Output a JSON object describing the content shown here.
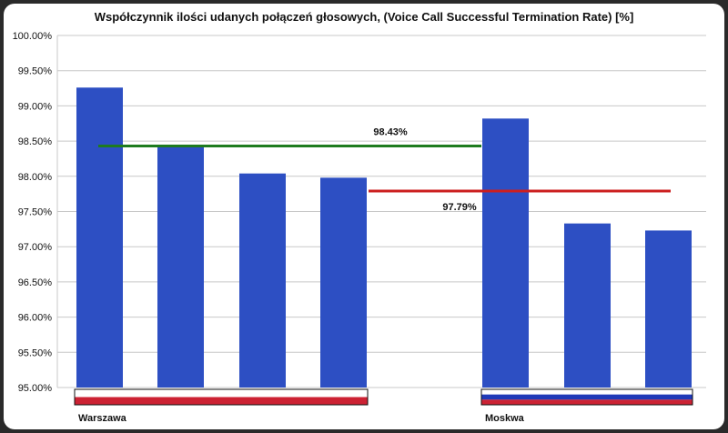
{
  "chart_data": {
    "type": "bar",
    "title": "Współczynnik ilości udanych połączeń głosowych, (Voice Call Successful Termination Rate) [%]",
    "ylim": [
      95.0,
      100.0
    ],
    "yticks": [
      "95.00%",
      "95.50%",
      "96.00%",
      "96.50%",
      "97.00%",
      "97.50%",
      "98.00%",
      "98.50%",
      "99.00%",
      "99.50%",
      "100.00%"
    ],
    "grid": true,
    "groups": [
      {
        "name": "Warszawa",
        "values": [
          99.26,
          98.43,
          98.04,
          97.98
        ],
        "average": 98.43,
        "average_label": "98.43%",
        "flag": [
          "#ffffff",
          "#cc2233"
        ]
      },
      {
        "name": "Moskwa",
        "values": [
          98.82,
          97.33,
          97.23
        ],
        "average": 97.79,
        "average_label": "97.79%",
        "flag": [
          "#ffffff",
          "#1f3ab8",
          "#cc2233"
        ]
      }
    ],
    "colors": {
      "bar": "#2d4fc3",
      "warszawa_average_line": "#1e7b1e",
      "moskwa_average_line": "#cc1f1f"
    }
  }
}
